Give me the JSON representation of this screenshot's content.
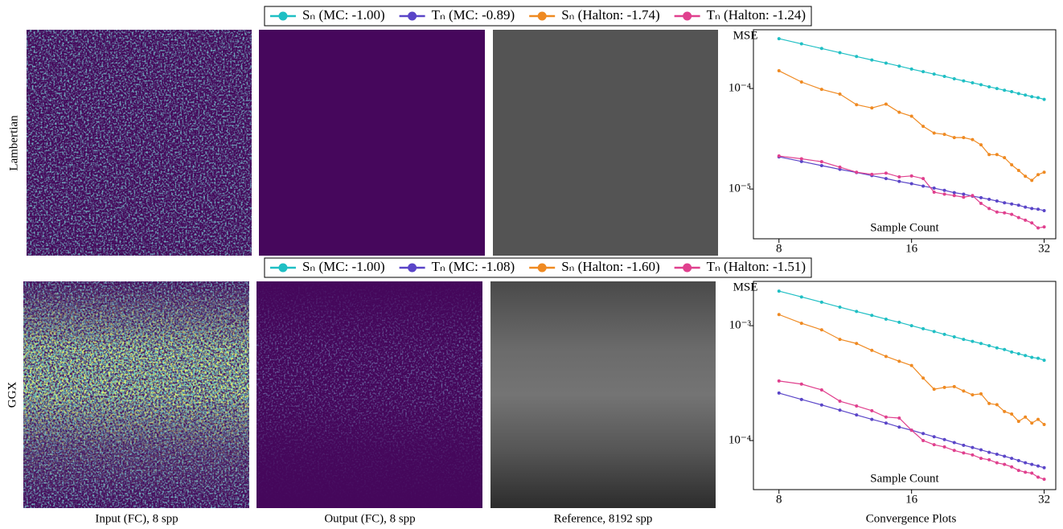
{
  "figure": {
    "row_labels": [
      "Lambertian",
      "GGX"
    ],
    "column_captions": [
      "Input (FC), 8 spp",
      "Output (FC), 8 spp",
      "Reference, 8192 spp",
      "Convergence Plots"
    ]
  },
  "chart_data": [
    {
      "type": "line",
      "y_label": "MSE",
      "x_label": "Sample Count",
      "xscale": "log",
      "yscale": "log",
      "legend": "top",
      "x": [
        8,
        9,
        10,
        11,
        12,
        13,
        14,
        15,
        16,
        17,
        18,
        19,
        20,
        21,
        22,
        23,
        24,
        25,
        26,
        27,
        28,
        29,
        30,
        31,
        32
      ],
      "xlim": [
        7,
        34
      ],
      "xticks": [
        8,
        16,
        32
      ],
      "ylim": [
        3.2e-06,
        0.000384
      ],
      "yticks": [
        {
          "value": 0.0001,
          "label": "10⁻⁴"
        },
        {
          "value": 1e-05,
          "label": "10⁻⁵"
        }
      ],
      "series": [
        {
          "name": "Sₙ (MC: -1.00)",
          "color": "#1fbfc4",
          "values": [
            0.000313,
            0.000278,
            0.00025,
            0.000227,
            0.000208,
            0.000192,
            0.000179,
            0.000167,
            0.000156,
            0.000147,
            0.000139,
            0.000132,
            0.000125,
            0.000119,
            0.000114,
            0.000109,
            0.000104,
            0.0001,
            9.6e-05,
            9.3e-05,
            8.9e-05,
            8.6e-05,
            8.3e-05,
            8.1e-05,
            7.8e-05
          ]
        },
        {
          "name": "Tₙ (MC: -0.89)",
          "color": "#5a45c8",
          "values": [
            2.09e-05,
            1.88e-05,
            1.71e-05,
            1.57e-05,
            1.46e-05,
            1.36e-05,
            1.27e-05,
            1.19e-05,
            1.13e-05,
            1.07e-05,
            1.02e-05,
            9.7e-06,
            9.2e-06,
            8.9e-06,
            8.5e-06,
            8.2e-06,
            7.9e-06,
            7.6e-06,
            7.3e-06,
            7.1e-06,
            6.9e-06,
            6.6e-06,
            6.4e-06,
            6.3e-06,
            6.1e-06
          ]
        },
        {
          "name": "Sₙ (Halton: -1.74)",
          "color": "#ef8a22",
          "values": [
            0.00015,
            0.000116,
            9.8e-05,
            8.8e-05,
            6.9e-05,
            6.4e-05,
            7e-05,
            5.8e-05,
            5.3e-05,
            4.2e-05,
            3.6e-05,
            3.5e-05,
            3.25e-05,
            3.25e-05,
            3.1e-05,
            2.75e-05,
            2.2e-05,
            2.2e-05,
            2.05e-05,
            1.74e-05,
            1.53e-05,
            1.34e-05,
            1.22e-05,
            1.39e-05,
            1.47e-05
          ]
        },
        {
          "name": "Tₙ (Halton: -1.24)",
          "color": "#e0408e",
          "values": [
            2.13e-05,
            2e-05,
            1.87e-05,
            1.65e-05,
            1.47e-05,
            1.4e-05,
            1.44e-05,
            1.32e-05,
            1.35e-05,
            1.27e-05,
            9.3e-06,
            8.9e-06,
            8.6e-06,
            8.3e-06,
            8.6e-06,
            7.2e-06,
            6.4e-06,
            5.9e-06,
            5.8e-06,
            5.6e-06,
            5.2e-06,
            4.9e-06,
            4.6e-06,
            4.1e-06,
            4.2e-06
          ]
        }
      ]
    },
    {
      "type": "line",
      "y_label": "MSE",
      "x_label": "Sample Count",
      "xscale": "log",
      "yscale": "log",
      "legend": "top",
      "x": [
        8,
        9,
        10,
        11,
        12,
        13,
        14,
        15,
        16,
        17,
        18,
        19,
        20,
        21,
        22,
        23,
        24,
        25,
        26,
        27,
        28,
        29,
        30,
        31,
        32
      ],
      "xlim": [
        7,
        34
      ],
      "xticks": [
        8,
        16,
        32
      ],
      "ylim": [
        3.74e-05,
        0.00243
      ],
      "yticks": [
        {
          "value": 0.001,
          "label": "10⁻³"
        },
        {
          "value": 0.0001,
          "label": "10⁻⁴"
        }
      ],
      "series": [
        {
          "name": "Sₙ (MC: -1.00)",
          "color": "#1fbfc4",
          "values": [
            0.002,
            0.00178,
            0.0016,
            0.00145,
            0.00133,
            0.00123,
            0.00114,
            0.00107,
            0.001,
            0.00094,
            0.00089,
            0.00084,
            0.0008,
            0.00076,
            0.00073,
            0.0007,
            0.00067,
            0.00064,
            0.00062,
            0.00059,
            0.00057,
            0.00055,
            0.00053,
            0.00052,
            0.0005
          ]
        },
        {
          "name": "Tₙ (MC: -1.08)",
          "color": "#5a45c8",
          "values": [
            0.000259,
            0.000228,
            0.000204,
            0.000184,
            0.000167,
            0.000153,
            0.000142,
            0.000131,
            0.000123,
            0.000115,
            0.000108,
            0.000102,
            9.6e-05,
            9.1e-05,
            8.7e-05,
            8.3e-05,
            7.9e-05,
            7.6e-05,
            7.3e-05,
            7e-05,
            6.7e-05,
            6.4e-05,
            6.2e-05,
            6e-05,
            5.8e-05
          ]
        },
        {
          "name": "Sₙ (Halton: -1.60)",
          "color": "#ef8a22",
          "values": [
            0.00125,
            0.00105,
            0.00092,
            0.00076,
            0.0007,
            0.00061,
            0.00054,
            0.00049,
            0.00045,
            0.00035,
            0.00028,
            0.00029,
            0.000295,
            0.00027,
            0.00025,
            0.000255,
            0.00021,
            0.000205,
            0.000179,
            0.00017,
            0.000147,
            0.00016,
            0.000142,
            0.000153,
            0.000138
          ]
        },
        {
          "name": "Tₙ (Halton: -1.51)",
          "color": "#e0408e",
          "values": [
            0.00033,
            0.00031,
            0.000276,
            0.00022,
            0.0002,
            0.000182,
            0.00016,
            0.000157,
            0.000123,
            0.0001,
            9.2e-05,
            8.8e-05,
            8.2e-05,
            7.8e-05,
            7.5e-05,
            7e-05,
            6.8e-05,
            6.4e-05,
            6.2e-05,
            5.9e-05,
            5.5e-05,
            5.3e-05,
            5.2e-05,
            4.8e-05,
            4.6e-05
          ]
        }
      ]
    }
  ]
}
